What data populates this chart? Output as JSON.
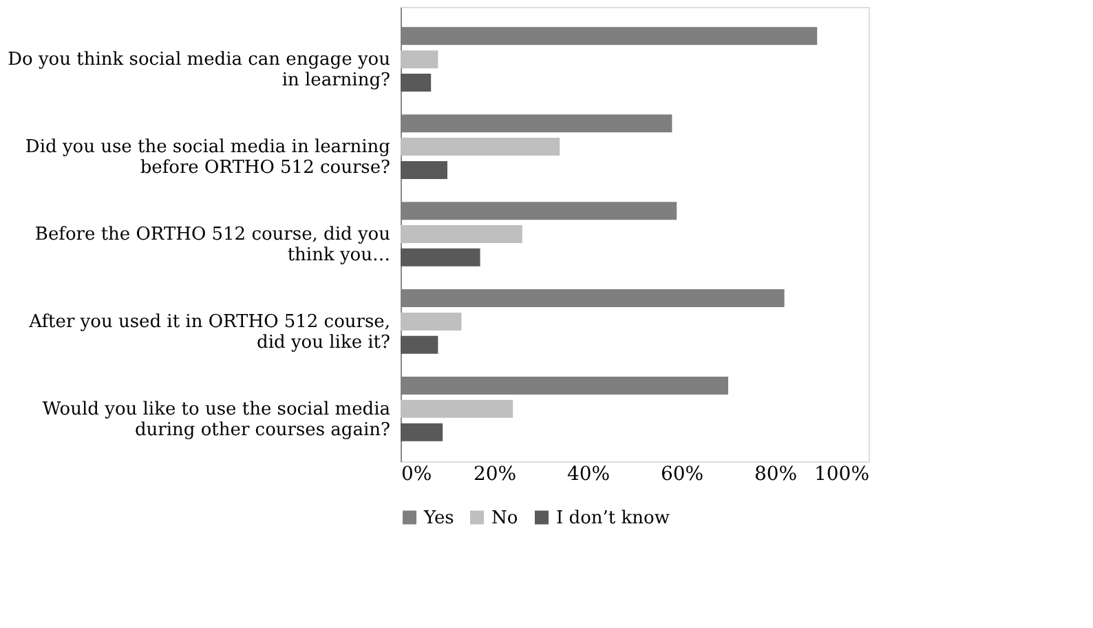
{
  "chart_data": {
    "type": "bar",
    "orientation": "horizontal",
    "categories": [
      "Do you think social media can engage you in learning?",
      "Did you use the social media in learning before ORTHO 512 course?",
      "Before the ORTHO 512 course, did you think you…",
      "After you used it in ORTHO 512 course, did you like it?",
      "Would you like to use the social media during other courses again?"
    ],
    "series": [
      {
        "name": "Yes",
        "color": "#7f7f7f",
        "values": [
          89,
          58,
          59,
          82,
          70
        ]
      },
      {
        "name": "No",
        "color": "#bfbfbf",
        "values": [
          8,
          34,
          26,
          13,
          24
        ]
      },
      {
        "name": "I don’t know",
        "color": "#595959",
        "values": [
          6.5,
          10,
          17,
          8,
          9
        ]
      }
    ],
    "xlim": [
      0,
      100
    ],
    "xticks": [
      {
        "value": 0,
        "label": "0%"
      },
      {
        "value": 20,
        "label": "20%"
      },
      {
        "value": 40,
        "label": "40%"
      },
      {
        "value": 60,
        "label": "60%"
      },
      {
        "value": 80,
        "label": "80%"
      },
      {
        "value": 100,
        "label": "100%"
      }
    ],
    "grid": false,
    "legend": "bottom"
  }
}
